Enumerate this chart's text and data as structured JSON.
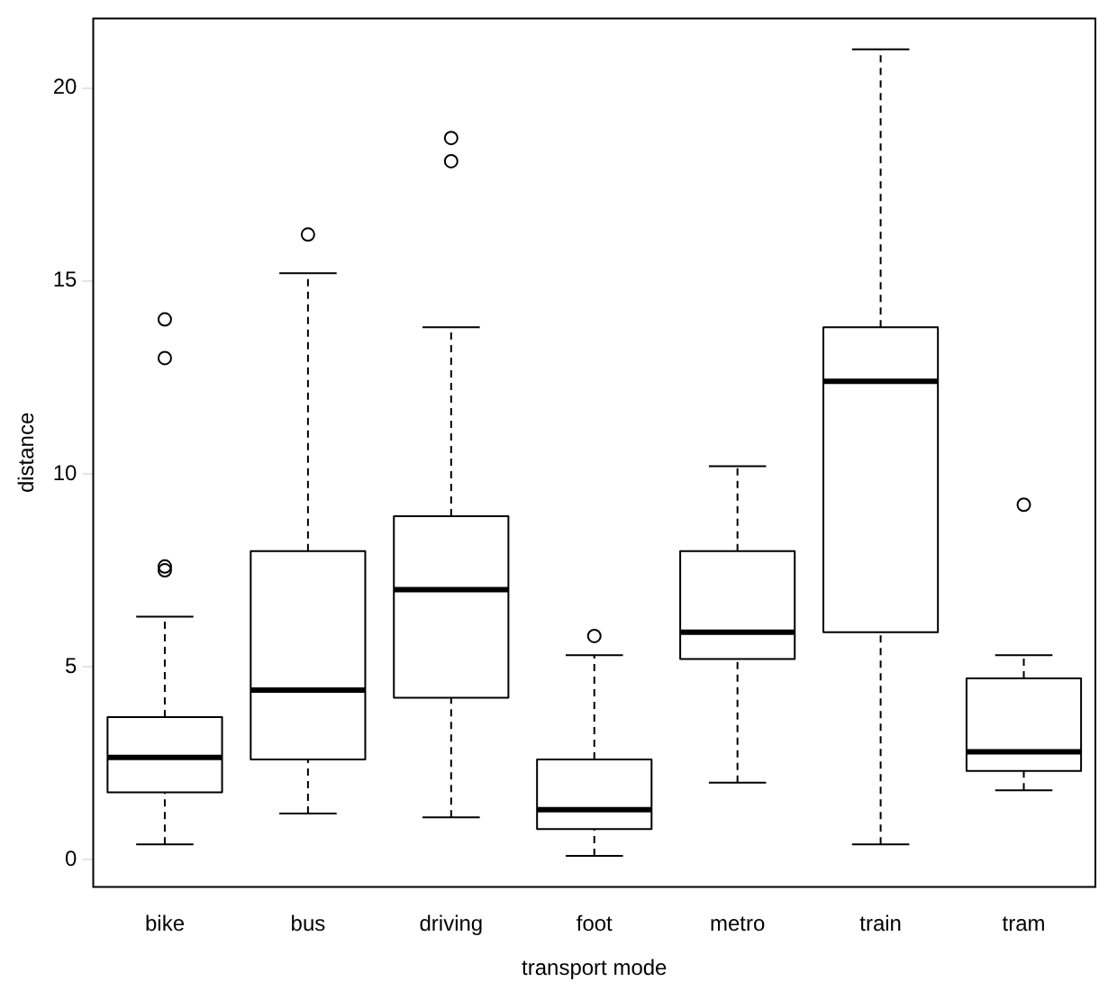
{
  "chart_data": {
    "type": "box",
    "xlabel": "transport mode",
    "ylabel": "distance",
    "categories": [
      "bike",
      "bus",
      "driving",
      "foot",
      "metro",
      "train",
      "tram"
    ],
    "color": "#000000",
    "boxes": [
      {
        "low": 0.4,
        "q1": 1.75,
        "median": 2.65,
        "q3": 3.7,
        "high": 6.3,
        "outliers": [
          7.5,
          7.6,
          13.0,
          14.0
        ]
      },
      {
        "low": 1.2,
        "q1": 2.6,
        "median": 4.4,
        "q3": 8.0,
        "high": 15.2,
        "outliers": [
          16.2
        ]
      },
      {
        "low": 1.1,
        "q1": 4.2,
        "median": 7.0,
        "q3": 8.9,
        "high": 13.8,
        "outliers": [
          18.1,
          18.7
        ]
      },
      {
        "low": 0.1,
        "q1": 0.8,
        "median": 1.3,
        "q3": 2.6,
        "high": 5.3,
        "outliers": [
          5.8
        ]
      },
      {
        "low": 2.0,
        "q1": 5.2,
        "median": 5.9,
        "q3": 8.0,
        "high": 10.2
      },
      {
        "low": 0.4,
        "q1": 5.9,
        "median": 12.4,
        "q3": 13.8,
        "high": 21.0
      },
      {
        "low": 1.8,
        "q1": 2.3,
        "median": 2.8,
        "q3": 4.7,
        "high": 5.3,
        "outliers": [
          9.2
        ]
      }
    ],
    "ylim": [
      -0.7,
      21.8
    ],
    "yticks": [
      0,
      5,
      10,
      15,
      20
    ],
    "grid": false,
    "legend": false
  }
}
